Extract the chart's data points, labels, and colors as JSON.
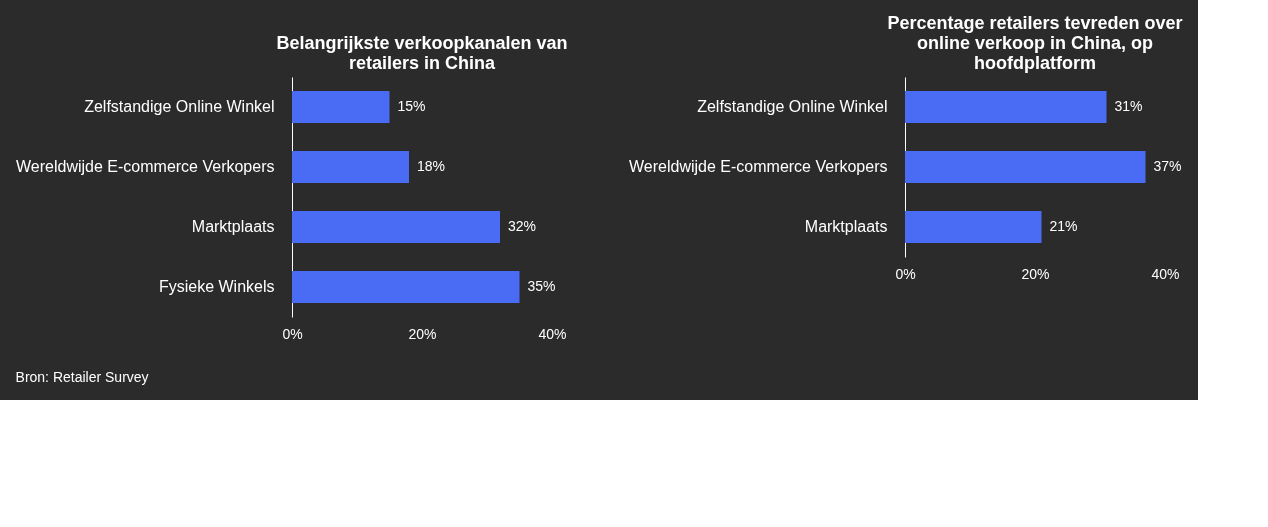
{
  "chart_data": [
    {
      "type": "bar",
      "orientation": "horizontal",
      "title": "Belangrijkste verkoopkanalen van retailers in China",
      "categories": [
        "Zelfstandige Online Winkel",
        "Wereldwijde E-commerce Verkopers",
        "Marktplaats",
        "Fysieke Winkels"
      ],
      "values": [
        15,
        18,
        32,
        35
      ],
      "value_labels": [
        "15%",
        "18%",
        "32%",
        "35%"
      ],
      "color": "#4a6cf4",
      "xlim": [
        0,
        40
      ],
      "xticks": [
        {
          "value": 0,
          "label": "0%"
        },
        {
          "value": 20,
          "label": "20%"
        },
        {
          "value": 40,
          "label": "40%"
        }
      ],
      "grid": false,
      "annotations": [
        "Bron: Retailer Survey"
      ]
    },
    {
      "type": "bar",
      "orientation": "horizontal",
      "title": "Percentage retailers tevreden over online verkoop in China, op hoofdplatform",
      "categories": [
        "Zelfstandige Online Winkel",
        "Wereldwijde E-commerce Verkopers",
        "Marktplaats"
      ],
      "values": [
        31,
        37,
        21
      ],
      "value_labels": [
        "31%",
        "37%",
        "21%"
      ],
      "color": "#4a6cf4",
      "xlim": [
        0,
        40
      ],
      "xticks": [
        {
          "value": 0,
          "label": "0%"
        },
        {
          "value": 20,
          "label": "20%"
        },
        {
          "value": 40,
          "label": "40%"
        }
      ],
      "grid": false
    }
  ]
}
